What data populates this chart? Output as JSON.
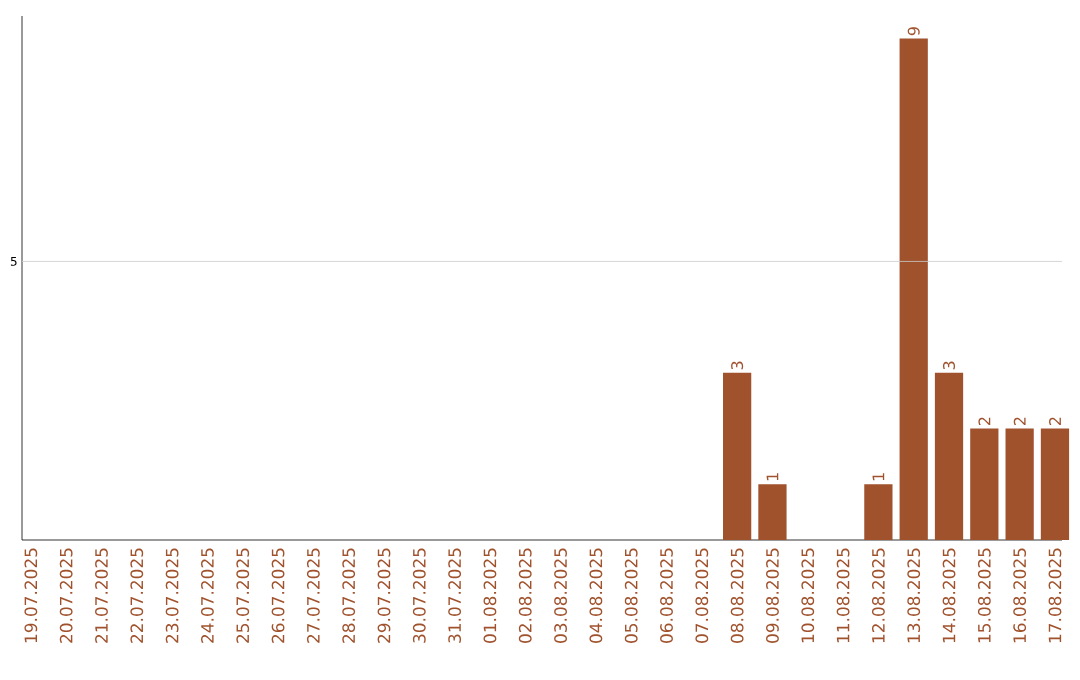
{
  "chart_data": {
    "type": "bar",
    "color": "#a0522d",
    "data_labels": true,
    "categories": [
      "19.07.2025",
      "20.07.2025",
      "21.07.2025",
      "22.07.2025",
      "23.07.2025",
      "24.07.2025",
      "25.07.2025",
      "26.07.2025",
      "27.07.2025",
      "28.07.2025",
      "29.07.2025",
      "30.07.2025",
      "31.07.2025",
      "01.08.2025",
      "02.08.2025",
      "03.08.2025",
      "04.08.2025",
      "05.08.2025",
      "06.08.2025",
      "07.08.2025",
      "08.08.2025",
      "09.08.2025",
      "10.08.2025",
      "11.08.2025",
      "12.08.2025",
      "13.08.2025",
      "14.08.2025",
      "15.08.2025",
      "16.08.2025",
      "17.08.2025"
    ],
    "values": [
      null,
      null,
      null,
      null,
      null,
      null,
      null,
      null,
      null,
      null,
      null,
      null,
      null,
      null,
      null,
      null,
      null,
      null,
      null,
      null,
      3,
      1,
      null,
      null,
      1,
      9,
      3,
      2,
      2,
      2
    ],
    "ref_lines": [
      {
        "axis": "y",
        "value": 5,
        "label": "5",
        "color": "#cccccc"
      }
    ]
  }
}
